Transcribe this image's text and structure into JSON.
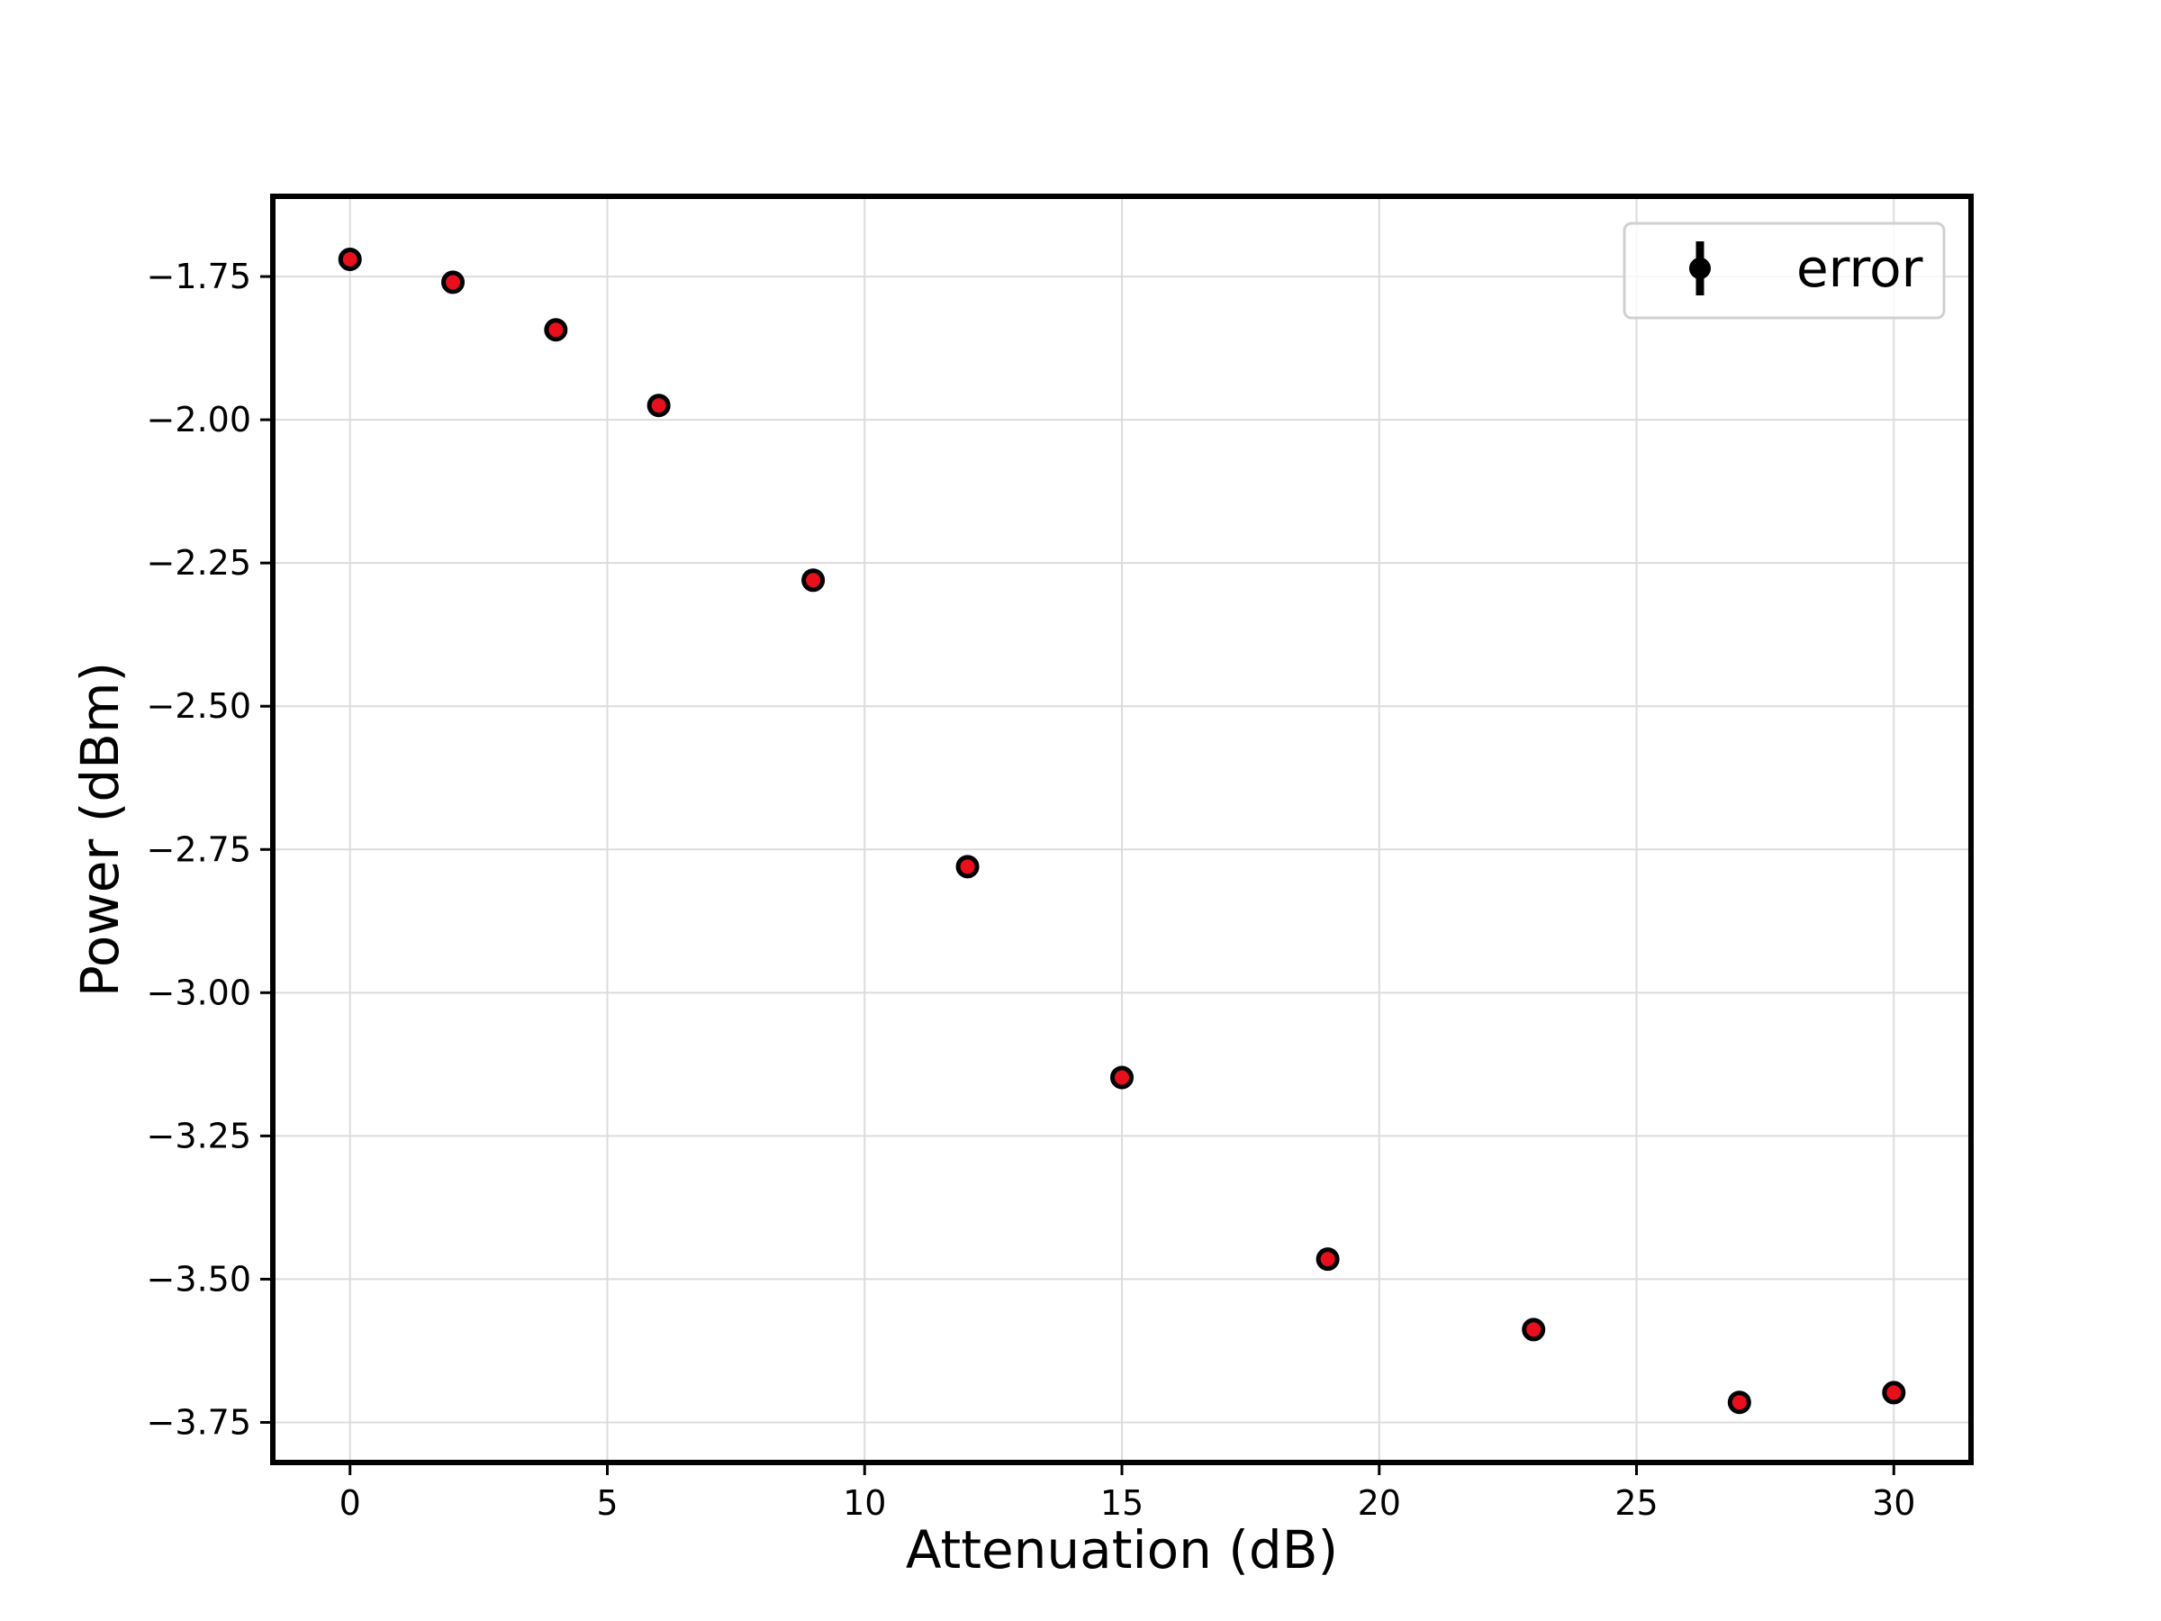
{
  "chart_data": {
    "type": "scatter",
    "title": "",
    "xlabel": "Attenuation (dB)",
    "ylabel": "Power (dBm)",
    "xlim": [
      -1.5,
      31.5
    ],
    "ylim": [
      -3.82,
      -1.61
    ],
    "xticks": [
      0,
      5,
      10,
      15,
      20,
      25,
      30
    ],
    "xtick_labels": [
      "0",
      "5",
      "10",
      "15",
      "20",
      "25",
      "30"
    ],
    "yticks": [
      -1.75,
      -2.0,
      -2.25,
      -2.5,
      -2.75,
      -3.0,
      -3.25,
      -3.5,
      -3.75
    ],
    "ytick_labels": [
      "−1.75",
      "−2.00",
      "−2.25",
      "−2.50",
      "−2.75",
      "−3.00",
      "−3.25",
      "−3.50",
      "−3.75"
    ],
    "grid": true,
    "legend_position": "top-right",
    "series": [
      {
        "name": "error",
        "marker_fill": "#e8101c",
        "marker_edge": "#000000",
        "x": [
          0,
          2,
          4,
          6,
          9,
          12,
          15,
          19,
          23,
          27,
          30
        ],
        "y": [
          -1.72,
          -1.76,
          -1.843,
          -1.975,
          -2.28,
          -2.78,
          -3.148,
          -3.465,
          -3.588,
          -3.715,
          -3.698
        ]
      }
    ]
  }
}
